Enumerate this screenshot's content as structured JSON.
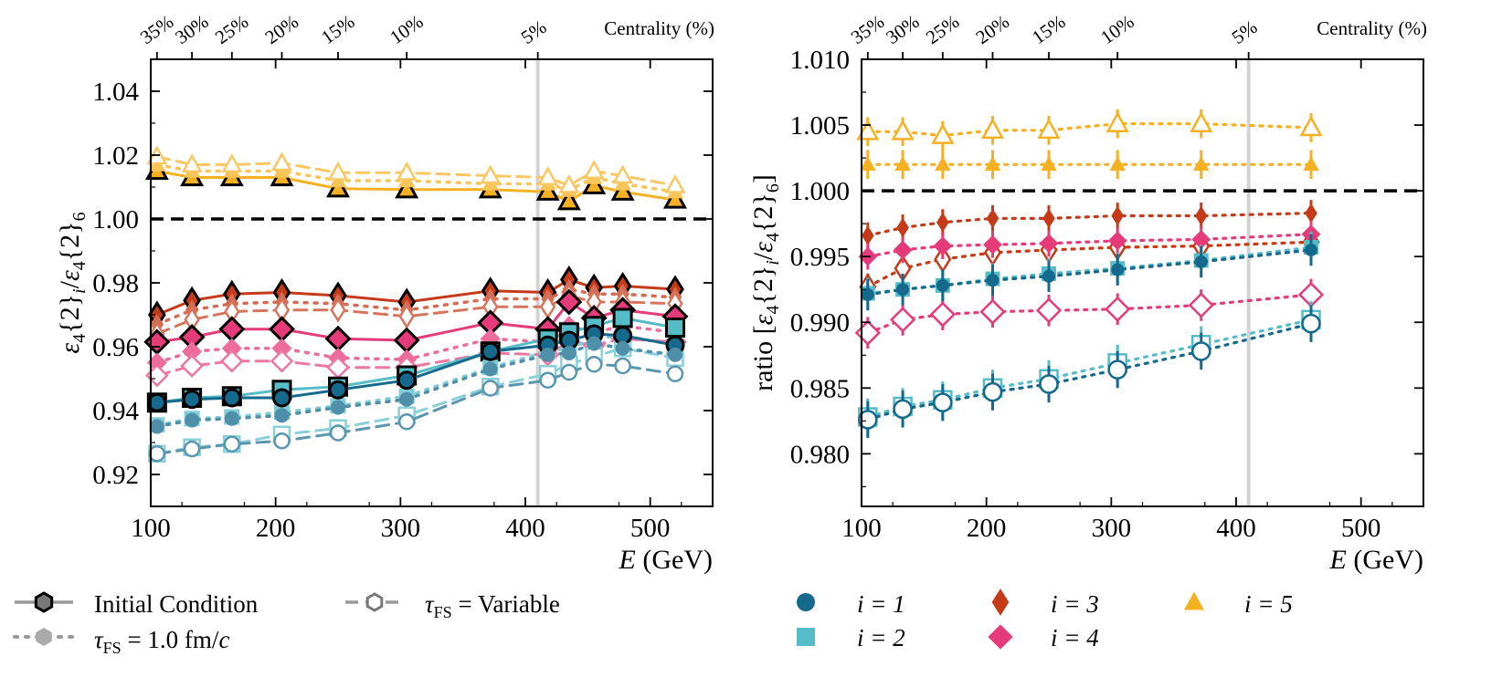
{
  "colors": {
    "i1": "#15698c",
    "i2": "#56bcc8",
    "i3": "#c53a19",
    "i4": "#e63b7a",
    "i5": "#f6b123",
    "gray": "#999999",
    "refline": "#000000",
    "centline": "#d3d3d3"
  },
  "icons": {
    "i1": "circle",
    "i2": "square",
    "i3": "thin-diamond",
    "i4": "diamond",
    "i5": "triangle",
    "initial": "hexagon",
    "tau_fixed": "hexagon",
    "tau_var": "hexagon"
  },
  "legend": {
    "initial_condition": "Initial Condition",
    "tau_variable": "τ",
    "tau_variable_sub": "FS",
    "tau_variable_rest": " = Variable",
    "tau_fixed": "τ",
    "tau_fixed_sub": "FS",
    "tau_fixed_rest": " = 1.0 fm/",
    "tau_fixed_unit": "c",
    "i1": "i = 1",
    "i2": "i = 2",
    "i3": "i = 3",
    "i4": "i = 4",
    "i5": "i = 5"
  },
  "chart_data": [
    {
      "type": "line",
      "panel": "left",
      "ylabel": "ε4{2}i/ε4{2}6",
      "ylabel_parts": {
        "eps": "ε",
        "sub": "4",
        "brace": "{2}",
        "i": "i",
        "slash": "/",
        "eps2": "ε",
        "sub2": "4",
        "brace2": "{2}",
        "six": "6"
      },
      "xlabel_E": "E",
      "xlabel_unit": " (GeV)",
      "xlim": [
        100,
        550
      ],
      "ylim": [
        0.91,
        1.05
      ],
      "xticks": [
        100,
        200,
        300,
        400,
        500
      ],
      "xtick_labels": [
        "100",
        "200",
        "300",
        "400",
        "500"
      ],
      "yticks": [
        0.92,
        0.94,
        0.96,
        0.98,
        1.0,
        1.02,
        1.04
      ],
      "ytick_labels": [
        "0.92",
        "0.94",
        "0.96",
        "0.98",
        "1.00",
        "1.02",
        "1.04"
      ],
      "reference_y": 1.0,
      "centrality_line_x": 410,
      "centrality_title": "Centrality (%)",
      "centrality_ticks": [
        {
          "label": "35%",
          "x": 105
        },
        {
          "label": "30%",
          "x": 133
        },
        {
          "label": "25%",
          "x": 165
        },
        {
          "label": "20%",
          "x": 205
        },
        {
          "label": "15%",
          "x": 250
        },
        {
          "label": "10%",
          "x": 305
        },
        {
          "label": "5%",
          "x": 410
        }
      ],
      "x": [
        105,
        133,
        165,
        205,
        250,
        305,
        372,
        418,
        435,
        455,
        478,
        520
      ],
      "series": [
        {
          "key": "i5",
          "style": "initial",
          "values": [
            1.015,
            1.013,
            1.013,
            1.013,
            1.0095,
            1.0092,
            1.0092,
            1.0085,
            1.0055,
            1.0105,
            1.0085,
            1.006
          ]
        },
        {
          "key": "i5",
          "style": "fixed",
          "values": [
            1.017,
            1.015,
            1.015,
            1.015,
            1.012,
            1.012,
            1.011,
            1.011,
            1.009,
            1.013,
            1.011,
            1.0085
          ]
        },
        {
          "key": "i5",
          "style": "variable",
          "values": [
            1.0195,
            1.017,
            1.017,
            1.0175,
            1.0145,
            1.0145,
            1.0135,
            1.013,
            1.0105,
            1.015,
            1.0135,
            1.0105
          ]
        },
        {
          "key": "i3",
          "style": "initial",
          "values": [
            0.97,
            0.9745,
            0.9765,
            0.977,
            0.976,
            0.974,
            0.9775,
            0.977,
            0.981,
            0.9785,
            0.979,
            0.978
          ]
        },
        {
          "key": "i3",
          "style": "fixed",
          "values": [
            0.967,
            0.9715,
            0.9735,
            0.974,
            0.9735,
            0.9715,
            0.975,
            0.975,
            0.978,
            0.9765,
            0.9765,
            0.9755
          ]
        },
        {
          "key": "i3",
          "style": "variable",
          "values": [
            0.964,
            0.9685,
            0.971,
            0.9715,
            0.9715,
            0.9695,
            0.9725,
            0.9725,
            0.976,
            0.974,
            0.974,
            0.9735
          ]
        },
        {
          "key": "i4",
          "style": "initial",
          "values": [
            0.9615,
            0.963,
            0.9655,
            0.9655,
            0.9625,
            0.962,
            0.9675,
            0.9655,
            0.974,
            0.969,
            0.9715,
            0.9695
          ]
        },
        {
          "key": "i4",
          "style": "fixed",
          "values": [
            0.955,
            0.9585,
            0.9595,
            0.9595,
            0.9565,
            0.956,
            0.9625,
            0.9615,
            0.9665,
            0.9645,
            0.9665,
            0.9645
          ]
        },
        {
          "key": "i4",
          "style": "variable",
          "values": [
            0.951,
            0.954,
            0.9555,
            0.9555,
            0.9535,
            0.9535,
            0.958,
            0.9575,
            0.9615,
            0.9605,
            0.9625,
            0.9615
          ]
        },
        {
          "key": "i2",
          "style": "initial",
          "values": [
            0.9425,
            0.944,
            0.9445,
            0.9465,
            0.9475,
            0.951,
            0.9585,
            0.9625,
            0.9645,
            0.9665,
            0.969,
            0.966
          ]
        },
        {
          "key": "i2",
          "style": "fixed",
          "values": [
            0.9355,
            0.9375,
            0.938,
            0.9395,
            0.9415,
            0.9445,
            0.9535,
            0.9585,
            0.9595,
            0.9625,
            0.9635,
            0.9605
          ]
        },
        {
          "key": "i2",
          "style": "variable",
          "values": [
            0.9265,
            0.9285,
            0.9295,
            0.9325,
            0.9345,
            0.9385,
            0.9475,
            0.9515,
            0.9545,
            0.957,
            0.9595,
            0.9565
          ]
        },
        {
          "key": "i1",
          "style": "initial",
          "values": [
            0.9425,
            0.9435,
            0.944,
            0.944,
            0.9465,
            0.9495,
            0.9585,
            0.9605,
            0.962,
            0.964,
            0.9635,
            0.9605
          ]
        },
        {
          "key": "i1",
          "style": "fixed",
          "values": [
            0.935,
            0.937,
            0.9375,
            0.9385,
            0.941,
            0.9435,
            0.953,
            0.9575,
            0.958,
            0.961,
            0.9595,
            0.9575
          ]
        },
        {
          "key": "i1",
          "style": "variable",
          "values": [
            0.9265,
            0.928,
            0.9295,
            0.9305,
            0.933,
            0.9365,
            0.947,
            0.9495,
            0.952,
            0.9545,
            0.954,
            0.9515
          ]
        }
      ]
    },
    {
      "type": "scatter",
      "panel": "right",
      "ylabel": "ratio [ε4{2}i/ε4{2}6]",
      "ylabel_parts": {
        "ratio": "ratio [",
        "eps": "ε",
        "sub": "4",
        "brace": "{2}",
        "i": "i",
        "slash": "/",
        "eps2": "ε",
        "sub2": "4",
        "brace2": "{2}",
        "six": "6",
        "close": "]"
      },
      "xlabel_E": "E",
      "xlabel_unit": " (GeV)",
      "xlim": [
        100,
        550
      ],
      "ylim": [
        0.976,
        1.01
      ],
      "xticks": [
        100,
        200,
        300,
        400,
        500
      ],
      "xtick_labels": [
        "100",
        "200",
        "300",
        "400",
        "500"
      ],
      "yticks": [
        0.98,
        0.985,
        0.99,
        0.995,
        1.0,
        1.005,
        1.01
      ],
      "ytick_labels": [
        "0.980",
        "0.985",
        "0.990",
        "0.995",
        "1.000",
        "1.005",
        "1.010"
      ],
      "reference_y": 1.0,
      "centrality_line_x": 410,
      "centrality_title": "Centrality (%)",
      "centrality_ticks": [
        {
          "label": "35%",
          "x": 105
        },
        {
          "label": "30%",
          "x": 133
        },
        {
          "label": "25%",
          "x": 165
        },
        {
          "label": "20%",
          "x": 205
        },
        {
          "label": "15%",
          "x": 250
        },
        {
          "label": "10%",
          "x": 305
        },
        {
          "label": "5%",
          "x": 410
        }
      ],
      "x": [
        105,
        133,
        165,
        205,
        250,
        305,
        372,
        460
      ],
      "series": [
        {
          "key": "i5",
          "style": "variable",
          "values": [
            1.0045,
            1.0045,
            1.0042,
            1.0046,
            1.0046,
            1.0051,
            1.0051,
            1.0048
          ],
          "err": 0.0011
        },
        {
          "key": "i5",
          "style": "fixed",
          "values": [
            1.002,
            1.002,
            1.002,
            1.002,
            1.002,
            1.002,
            1.002,
            1.002
          ],
          "err": 0.0011
        },
        {
          "key": "i3",
          "style": "fixed",
          "values": [
            0.9966,
            0.9972,
            0.9976,
            0.9979,
            0.9979,
            0.9981,
            0.9981,
            0.9983
          ],
          "err": 0.001
        },
        {
          "key": "i3",
          "style": "variable",
          "values": [
            0.9927,
            0.9941,
            0.9948,
            0.9953,
            0.9955,
            0.9957,
            0.9958,
            0.9961
          ],
          "err": 0.001
        },
        {
          "key": "i4",
          "style": "fixed",
          "values": [
            0.995,
            0.9955,
            0.9958,
            0.9959,
            0.996,
            0.9962,
            0.9963,
            0.9967
          ],
          "err": 0.001
        },
        {
          "key": "i4",
          "style": "variable",
          "values": [
            0.9892,
            0.9902,
            0.9906,
            0.9908,
            0.9909,
            0.991,
            0.9913,
            0.9921
          ],
          "err": 0.0012
        },
        {
          "key": "i2",
          "style": "fixed",
          "values": [
            0.9922,
            0.9925,
            0.9928,
            0.9933,
            0.9937,
            0.9941,
            0.9947,
            0.9957
          ],
          "err": 0.0012
        },
        {
          "key": "i1",
          "style": "fixed",
          "values": [
            0.9921,
            0.9925,
            0.9928,
            0.9932,
            0.9935,
            0.994,
            0.9946,
            0.9955
          ],
          "err": 0.0012
        },
        {
          "key": "i2",
          "style": "variable",
          "values": [
            0.9828,
            0.9836,
            0.9841,
            0.985,
            0.9857,
            0.9869,
            0.9883,
            0.9902
          ],
          "err": 0.0014
        },
        {
          "key": "i1",
          "style": "variable",
          "values": [
            0.9826,
            0.9834,
            0.9839,
            0.9847,
            0.9853,
            0.9864,
            0.9878,
            0.9899
          ],
          "err": 0.0014
        }
      ]
    }
  ]
}
